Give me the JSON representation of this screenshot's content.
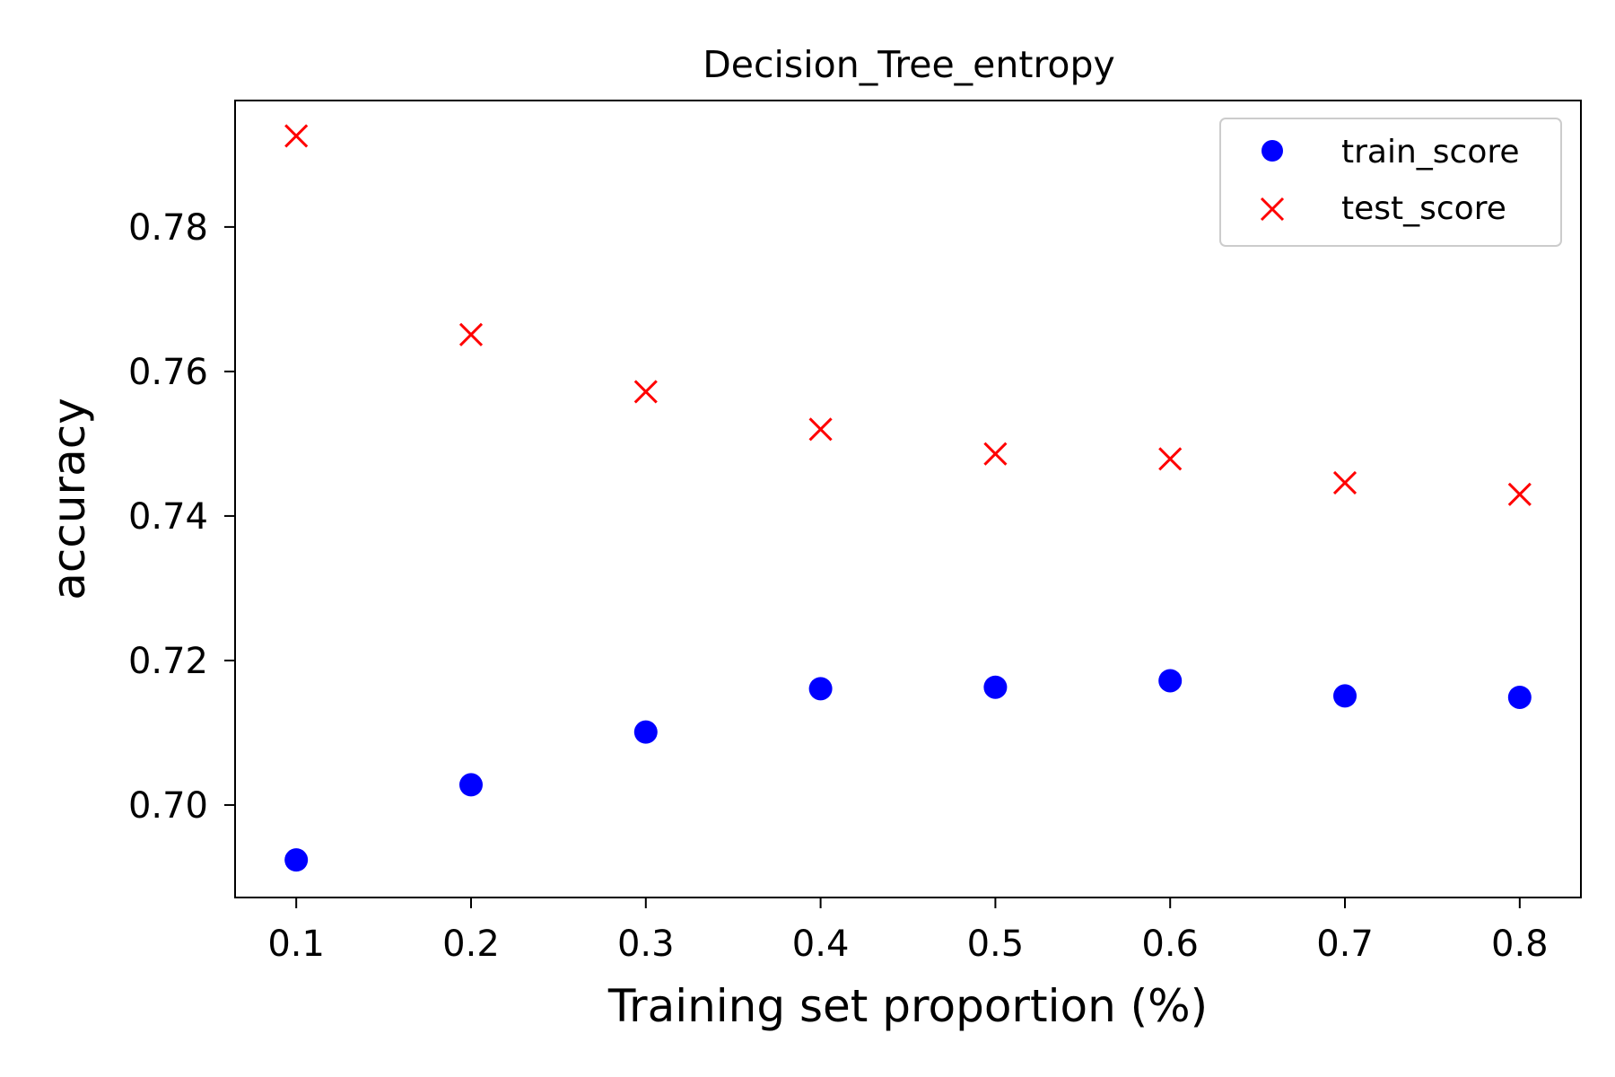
{
  "chart_data": {
    "type": "scatter",
    "title": "Decision_Tree_entropy",
    "xlabel": "Training set proportion (%)",
    "ylabel": "accuracy",
    "xlim": [
      0.065,
      0.835
    ],
    "ylim": [
      0.6872,
      0.7975
    ],
    "x_ticks": [
      0.1,
      0.2,
      0.3,
      0.4,
      0.5,
      0.6,
      0.7,
      0.8
    ],
    "x_tick_labels": [
      "0.1",
      "0.2",
      "0.3",
      "0.4",
      "0.5",
      "0.6",
      "0.7",
      "0.8"
    ],
    "y_ticks": [
      0.7,
      0.72,
      0.74,
      0.76,
      0.78
    ],
    "y_tick_labels": [
      "0.70",
      "0.72",
      "0.74",
      "0.76",
      "0.78"
    ],
    "grid": false,
    "legend_position": "top-right",
    "x": [
      0.1,
      0.2,
      0.3,
      0.4,
      0.5,
      0.6,
      0.7,
      0.8
    ],
    "series": [
      {
        "name": "train_score",
        "marker": "circle",
        "color": "#0000ff",
        "values": [
          0.6924,
          0.7028,
          0.7101,
          0.7161,
          0.7163,
          0.7172,
          0.7151,
          0.7149
        ]
      },
      {
        "name": "test_score",
        "marker": "x",
        "color": "#ff0000",
        "values": [
          0.7926,
          0.7651,
          0.7572,
          0.752,
          0.7486,
          0.7479,
          0.7446,
          0.743
        ]
      }
    ]
  }
}
